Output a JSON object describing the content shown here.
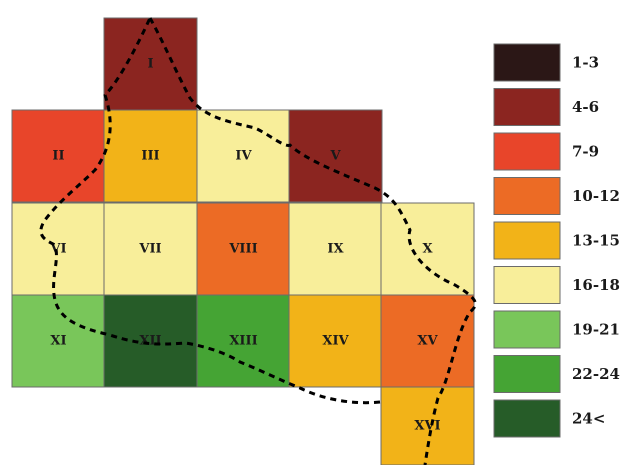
{
  "map": {
    "cells": [
      {
        "label": "I",
        "class_index": 1
      },
      {
        "label": "II",
        "class_index": 2
      },
      {
        "label": "III",
        "class_index": 4
      },
      {
        "label": "IV",
        "class_index": 5
      },
      {
        "label": "V",
        "class_index": 1
      },
      {
        "label": "VI",
        "class_index": 5
      },
      {
        "label": "VII",
        "class_index": 5
      },
      {
        "label": "VIII",
        "class_index": 3
      },
      {
        "label": "IX",
        "class_index": 5
      },
      {
        "label": "X",
        "class_index": 5
      },
      {
        "label": "XI",
        "class_index": 6
      },
      {
        "label": "XII",
        "class_index": 8
      },
      {
        "label": "XIII",
        "class_index": 7
      },
      {
        "label": "XIV",
        "class_index": 4
      },
      {
        "label": "XV",
        "class_index": 3
      },
      {
        "label": "XVI",
        "class_index": 4
      }
    ]
  },
  "legend": {
    "items": [
      {
        "label": "1-3",
        "color": "#2b1716"
      },
      {
        "label": "4-6",
        "color": "#8b2520"
      },
      {
        "label": "7-9",
        "color": "#e8452a"
      },
      {
        "label": "10-12",
        "color": "#ec6b25"
      },
      {
        "label": "13-15",
        "color": "#f2b318"
      },
      {
        "label": "16-18",
        "color": "#f8ee9a"
      },
      {
        "label": "19-21",
        "color": "#79c65a"
      },
      {
        "label": "22-24",
        "color": "#45a434"
      },
      {
        "label": "24<",
        "color": "#265c28"
      }
    ]
  }
}
